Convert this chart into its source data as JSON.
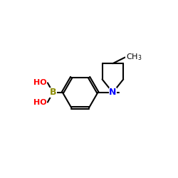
{
  "bg_color": "#ffffff",
  "atom_colors": {
    "B": "#8b8b00",
    "O": "#ff0000",
    "N": "#0000ff",
    "C": "#000000",
    "H": "#000000"
  },
  "bond_color": "#000000",
  "bond_width": 1.5,
  "fig_size": [
    2.5,
    2.5
  ],
  "dpi": 100
}
